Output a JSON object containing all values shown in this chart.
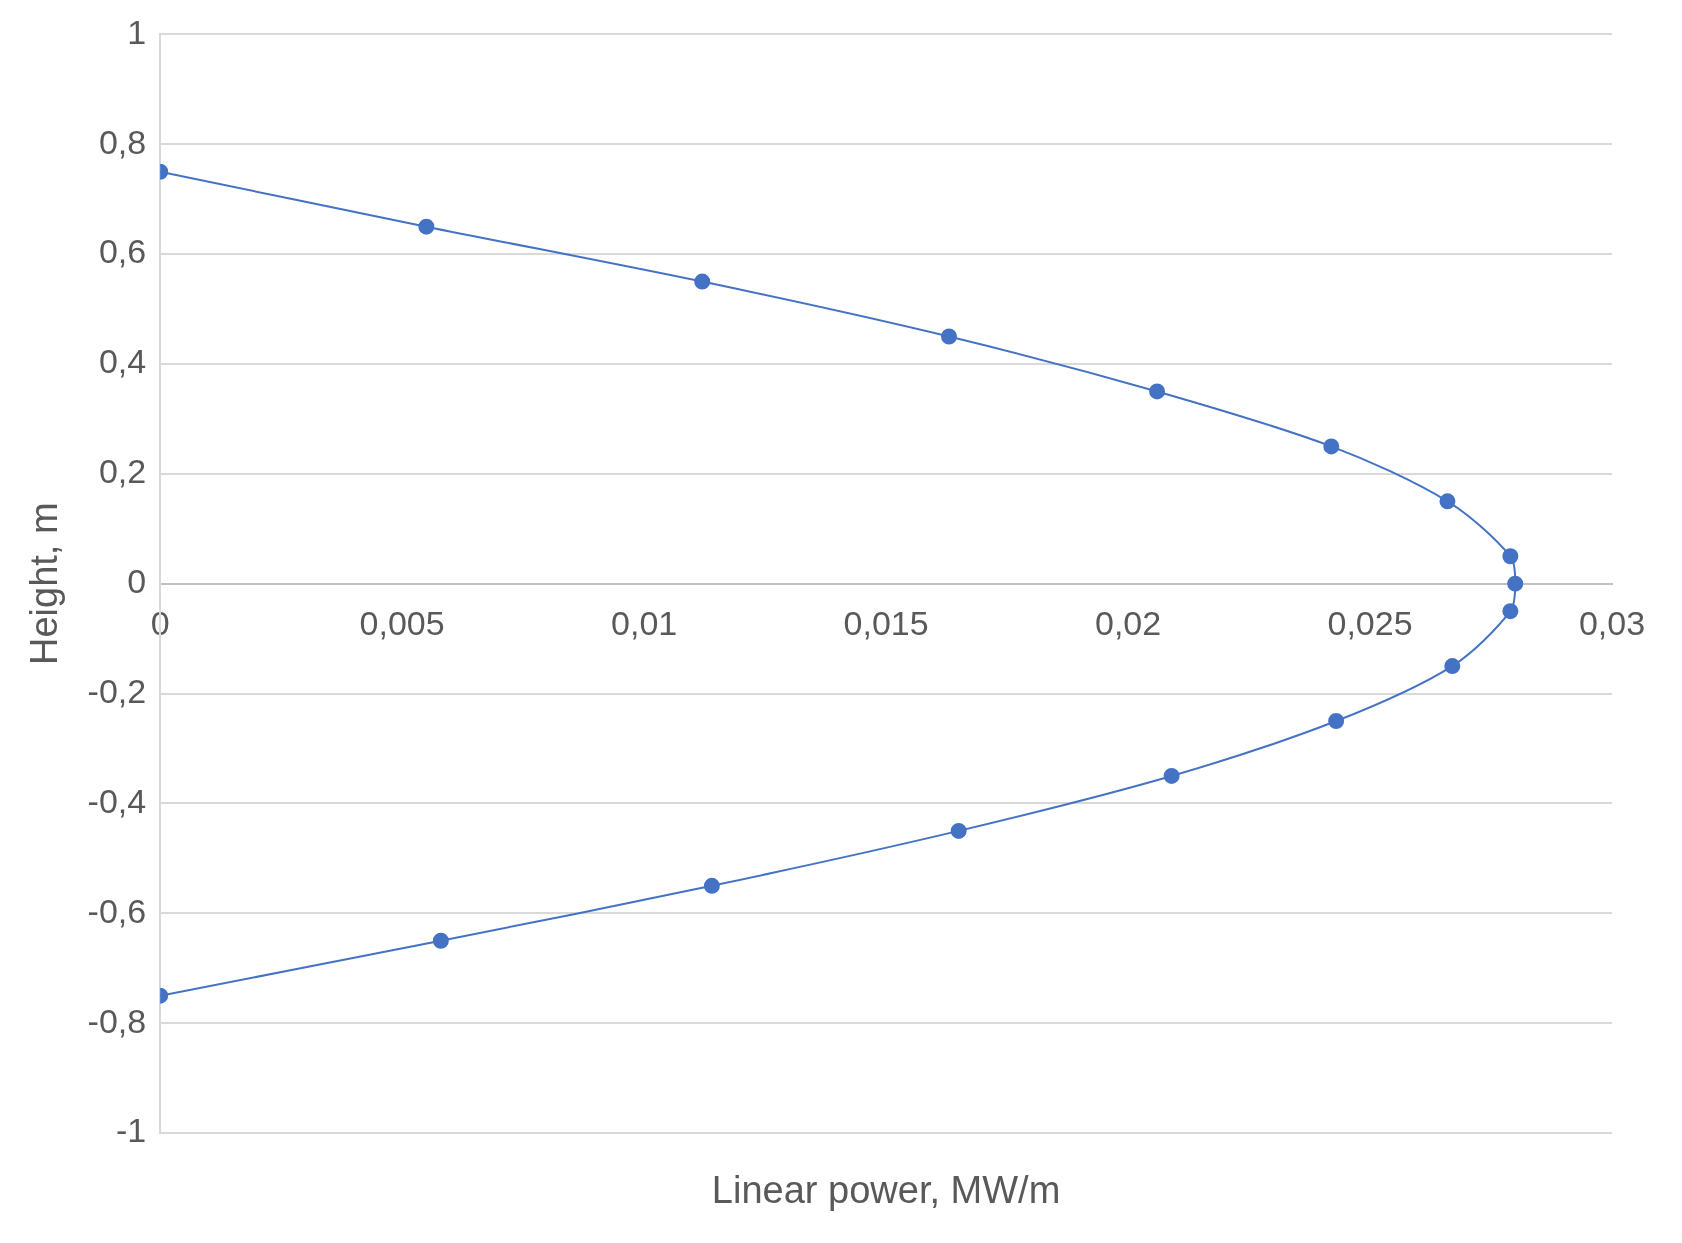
{
  "chart_data": {
    "type": "scatter",
    "xlabel": "Linear power, MW/m",
    "ylabel": "Height, m",
    "series": [
      {
        "type": "line",
        "color": "#4472c4",
        "x": [
          0,
          0.0055,
          0.0112,
          0.0163,
          0.0206,
          0.0242,
          0.0266,
          0.0279,
          0.028,
          0.0279,
          0.0267,
          0.0243,
          0.0209,
          0.0165,
          0.0114,
          0.0058,
          0
        ],
        "values": [
          0.75,
          0.65,
          0.55,
          0.45,
          0.35,
          0.25,
          0.15,
          0.05,
          0,
          -0.05,
          -0.15,
          -0.25,
          -0.35,
          -0.45,
          -0.55,
          -0.65,
          -0.75
        ]
      }
    ],
    "xlim": [
      0,
      0.03
    ],
    "ylim": [
      -1,
      1
    ],
    "xticks": [
      0,
      {
        "value": 0.005,
        "label": "0,005"
      },
      {
        "value": 0.01,
        "label": "0,01"
      },
      {
        "value": 0.015,
        "label": "0,015"
      },
      {
        "value": 0.02,
        "label": "0,02"
      },
      {
        "value": 0.025,
        "label": "0,025"
      },
      {
        "value": 0.03,
        "label": "0,03"
      }
    ],
    "yticks": [
      -1,
      {
        "value": -0.8,
        "label": "-0,8"
      },
      {
        "value": -0.6,
        "label": "-0,6"
      },
      {
        "value": -0.4,
        "label": "-0,4"
      },
      {
        "value": -0.2,
        "label": "-0,2"
      },
      0,
      {
        "value": 0.2,
        "label": "0,2"
      },
      {
        "value": 0.4,
        "label": "0,4"
      },
      {
        "value": 0.6,
        "label": "0,6"
      },
      {
        "value": 0.8,
        "label": "0,8"
      },
      1
    ],
    "grid": "y",
    "marker": "circle",
    "line_style": "solid",
    "legend": false
  }
}
